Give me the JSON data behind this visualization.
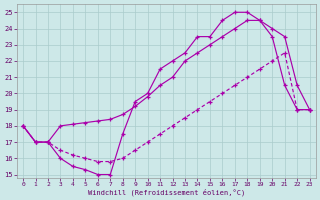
{
  "xlabel": "Windchill (Refroidissement éolien,°C)",
  "xlim": [
    -0.5,
    23.5
  ],
  "ylim": [
    14.8,
    25.5
  ],
  "xticks": [
    0,
    1,
    2,
    3,
    4,
    5,
    6,
    7,
    8,
    9,
    10,
    11,
    12,
    13,
    14,
    15,
    16,
    17,
    18,
    19,
    20,
    21,
    22,
    23
  ],
  "yticks": [
    15,
    16,
    17,
    18,
    19,
    20,
    21,
    22,
    23,
    24,
    25
  ],
  "bg_color": "#cde8e8",
  "grid_color": "#aacccc",
  "line_color": "#aa00aa",
  "curve1_x": [
    0,
    1,
    2,
    3,
    4,
    5,
    6,
    7,
    8,
    9,
    10,
    11,
    12,
    13,
    14,
    15,
    16,
    17,
    18,
    19,
    20,
    21,
    22,
    23
  ],
  "curve1_y": [
    18,
    17,
    17,
    16,
    15.5,
    15.3,
    15,
    15,
    17.5,
    19.5,
    20,
    21.5,
    22,
    22.5,
    23.5,
    23.5,
    24.5,
    25,
    25,
    24.5,
    23.5,
    20.5,
    19,
    19
  ],
  "curve2_x": [
    0,
    1,
    2,
    3,
    4,
    5,
    6,
    7,
    8,
    9,
    10,
    11,
    12,
    13,
    14,
    15,
    16,
    17,
    18,
    19,
    20,
    21,
    22,
    23
  ],
  "curve2_y": [
    18,
    17,
    17,
    18,
    18.1,
    18.2,
    18.3,
    18.4,
    18.7,
    19.2,
    19.8,
    20.5,
    21,
    22,
    22.5,
    23,
    23.5,
    24,
    24.5,
    24.5,
    24,
    23.5,
    20.5,
    19
  ],
  "curve3_x": [
    0,
    1,
    2,
    3,
    4,
    5,
    6,
    7,
    8,
    9,
    10,
    11,
    12,
    13,
    14,
    15,
    16,
    17,
    18,
    19,
    20,
    21,
    22,
    23
  ],
  "curve3_y": [
    18,
    17,
    17,
    16.5,
    16.2,
    16.0,
    15.8,
    15.8,
    16,
    16.5,
    17,
    17.5,
    18,
    18.5,
    19,
    19.5,
    20,
    20.5,
    21,
    21.5,
    22,
    22.5,
    19,
    19
  ]
}
